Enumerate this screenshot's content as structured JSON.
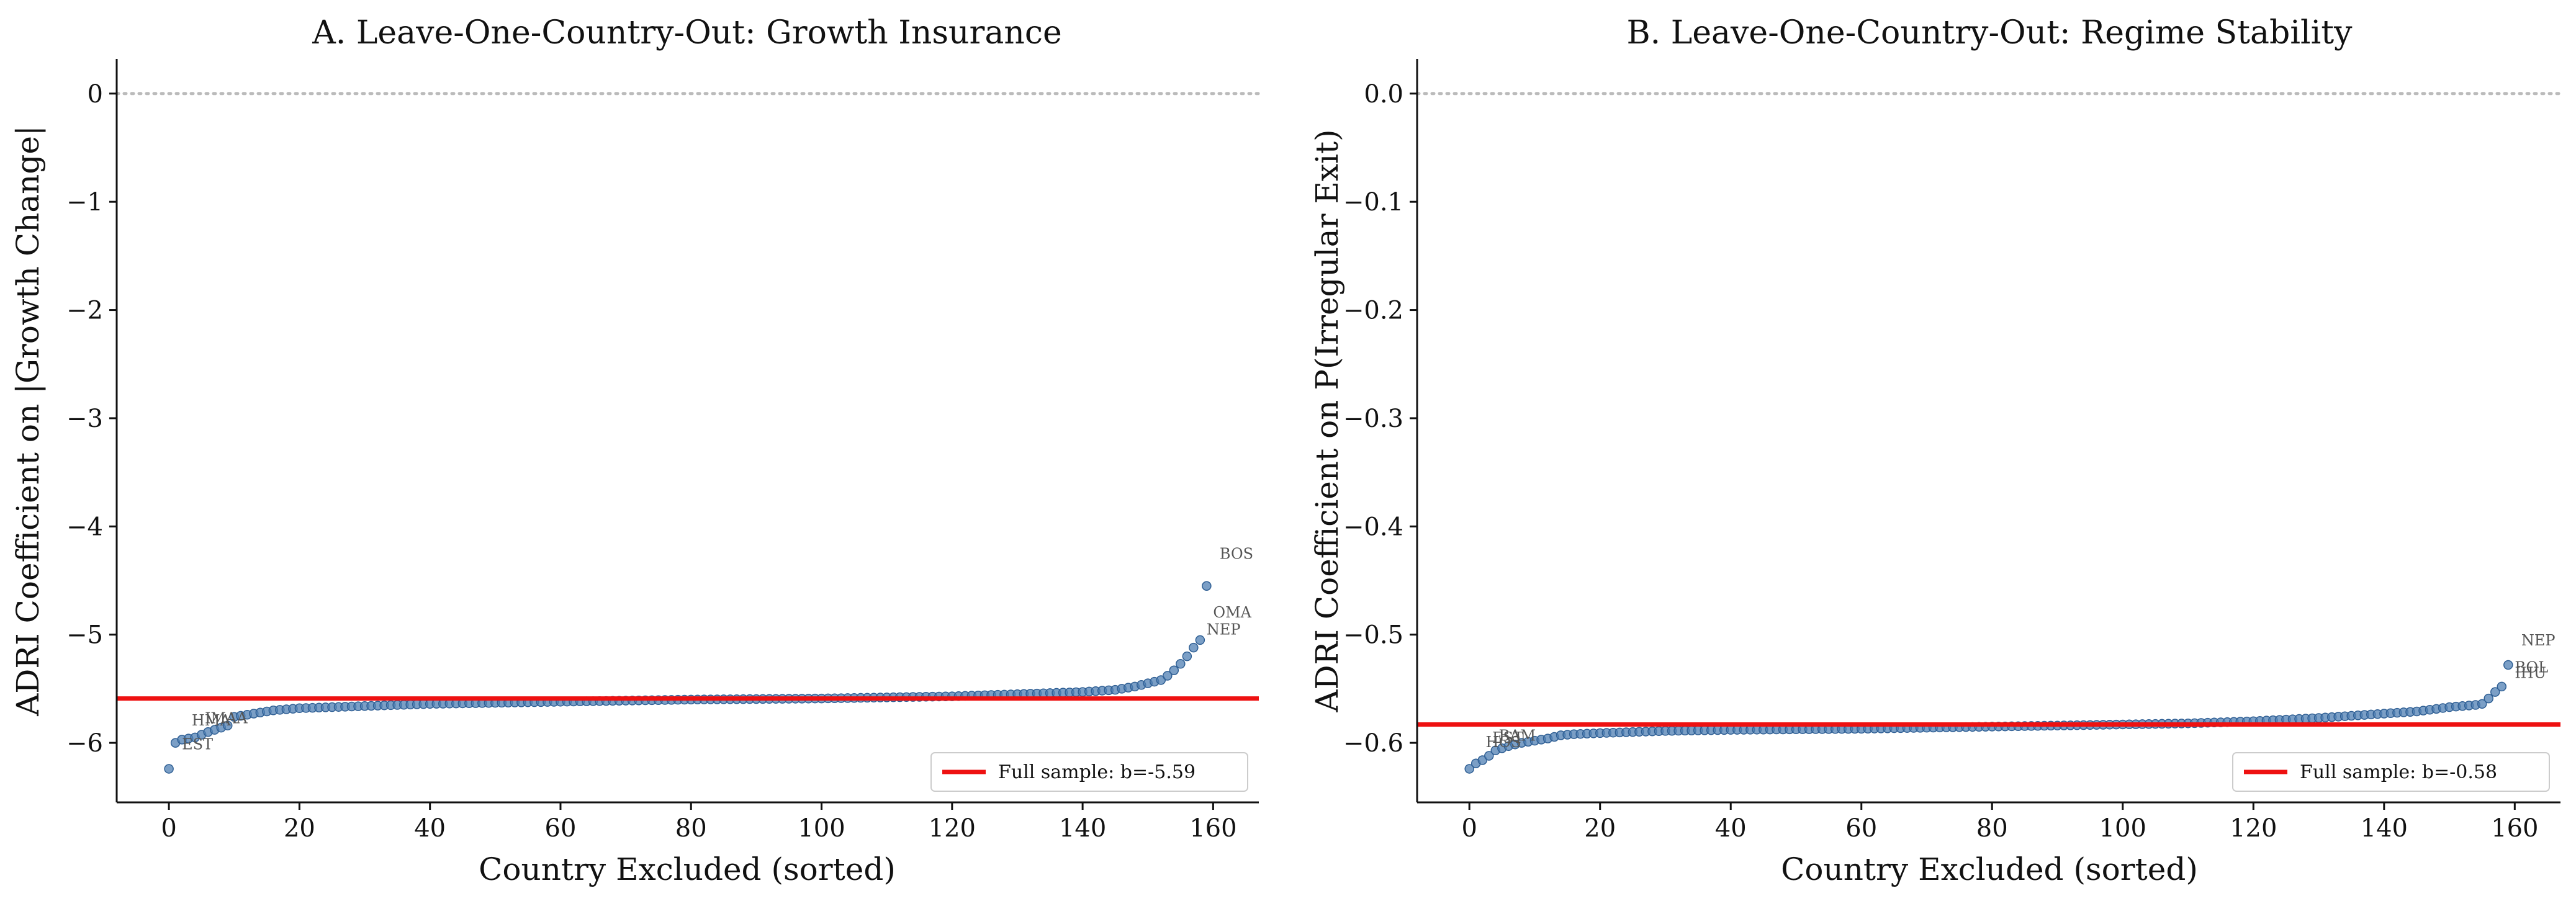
{
  "chart_data": [
    {
      "type": "scatter",
      "title": "A. Leave-One-Country-Out: Growth Insurance",
      "xlabel": "Country Excluded (sorted)",
      "ylabel": "ADRI Coefficient on |Growth Change|",
      "xlim": [
        -8,
        167
      ],
      "ylim": [
        -6.55,
        0.32
      ],
      "xticks": [
        0,
        20,
        40,
        60,
        80,
        100,
        120,
        140,
        160
      ],
      "yticks": [
        0,
        -1,
        -2,
        -3,
        -4,
        -5,
        -6
      ],
      "ytick_labels": [
        "0",
        "−1",
        "−2",
        "−3",
        "−4",
        "−5",
        "−6"
      ],
      "n_points": 160,
      "curve_x": [
        0,
        1,
        2,
        4,
        6,
        8,
        9,
        10,
        12,
        14,
        16,
        18,
        20,
        25,
        30,
        40,
        60,
        80,
        100,
        120,
        130,
        140,
        145,
        148,
        150,
        152,
        153,
        154,
        155,
        156,
        157,
        158,
        159
      ],
      "curve_y": [
        -6.24,
        -6.0,
        -5.97,
        -5.95,
        -5.9,
        -5.86,
        -5.84,
        -5.76,
        -5.74,
        -5.72,
        -5.7,
        -5.69,
        -5.68,
        -5.67,
        -5.66,
        -5.64,
        -5.62,
        -5.6,
        -5.59,
        -5.57,
        -5.55,
        -5.53,
        -5.51,
        -5.48,
        -5.45,
        -5.42,
        -5.38,
        -5.33,
        -5.27,
        -5.2,
        -5.12,
        -5.05,
        -4.55
      ],
      "reference_line": {
        "y": 0,
        "style": "dotted",
        "color": "#bbbbbb"
      },
      "full_sample_line": {
        "y": -5.59,
        "color": "#ee1111",
        "label": "Full sample: b=-5.59"
      },
      "annotations": [
        {
          "text": "EST",
          "x": 0,
          "y": -6.24,
          "dx": 2,
          "dy": 0.18
        },
        {
          "text": "HMA",
          "x": 3,
          "y": -5.96,
          "dx": 0.5,
          "dy": 0.12
        },
        {
          "text": "IMAA",
          "x": 5,
          "y": -5.94,
          "dx": 0.5,
          "dy": 0.12
        },
        {
          "text": "BOS",
          "x": 159,
          "y": -4.55,
          "dx": 2,
          "dy": 0.25
        },
        {
          "text": "OMA",
          "x": 158,
          "y": -4.96,
          "dx": 2,
          "dy": 0.12
        },
        {
          "text": "NEP",
          "x": 157,
          "y": -5.02,
          "dx": 2,
          "dy": 0.02
        }
      ],
      "legend": {
        "position": "lower-right",
        "label": "Full sample: b=-5.59"
      },
      "colors": {
        "points": "#4f7fb3",
        "point_edge": "#2f5f94"
      }
    },
    {
      "type": "scatter",
      "title": "B. Leave-One-Country-Out: Regime Stability",
      "xlabel": "Country Excluded (sorted)",
      "ylabel": "ADRI Coefficient on P(Irregular Exit)",
      "xlim": [
        -8,
        167
      ],
      "ylim": [
        -0.655,
        0.032
      ],
      "xticks": [
        0,
        20,
        40,
        60,
        80,
        100,
        120,
        140,
        160
      ],
      "yticks": [
        0.0,
        -0.1,
        -0.2,
        -0.3,
        -0.4,
        -0.5,
        -0.6
      ],
      "ytick_labels": [
        "0.0",
        "−0.1",
        "−0.2",
        "−0.3",
        "−0.4",
        "−0.5",
        "−0.6"
      ],
      "n_points": 160,
      "curve_x": [
        0,
        1,
        2,
        3,
        4,
        5,
        6,
        8,
        10,
        12,
        14,
        16,
        20,
        30,
        40,
        60,
        80,
        100,
        110,
        120,
        130,
        140,
        145,
        150,
        152,
        154,
        155,
        156,
        157,
        158,
        159
      ],
      "curve_y": [
        -0.624,
        -0.619,
        -0.616,
        -0.612,
        -0.607,
        -0.605,
        -0.603,
        -0.6,
        -0.598,
        -0.596,
        -0.593,
        -0.592,
        -0.591,
        -0.589,
        -0.588,
        -0.587,
        -0.585,
        -0.583,
        -0.582,
        -0.58,
        -0.577,
        -0.573,
        -0.571,
        -0.567,
        -0.566,
        -0.565,
        -0.564,
        -0.559,
        -0.553,
        -0.548,
        -0.528
      ],
      "reference_line": {
        "y": 0.0,
        "style": "dotted",
        "color": "#bbbbbb"
      },
      "full_sample_line": {
        "y": -0.583,
        "color": "#ee1111",
        "label": "Full sample: b=-0.58"
      },
      "annotations": [
        {
          "text": "HOS",
          "x": 2,
          "y": -0.616,
          "dx": 0.5,
          "dy": 0.012
        },
        {
          "text": "EST",
          "x": 3,
          "y": -0.612,
          "dx": 0.5,
          "dy": 0.012
        },
        {
          "text": "BAM",
          "x": 4,
          "y": -0.607,
          "dx": 0.5,
          "dy": 0.009
        },
        {
          "text": "NEP",
          "x": 159,
          "y": -0.528,
          "dx": 2,
          "dy": 0.018
        },
        {
          "text": "BOL",
          "x": 158,
          "y": -0.535,
          "dx": 2,
          "dy": 0.0
        },
        {
          "text": "IHU",
          "x": 157,
          "y": -0.548,
          "dx": 3,
          "dy": 0.008
        }
      ],
      "legend": {
        "position": "lower-right",
        "label": "Full sample: b=-0.58"
      },
      "colors": {
        "points": "#4f7fb3",
        "point_edge": "#2f5f94"
      }
    }
  ]
}
